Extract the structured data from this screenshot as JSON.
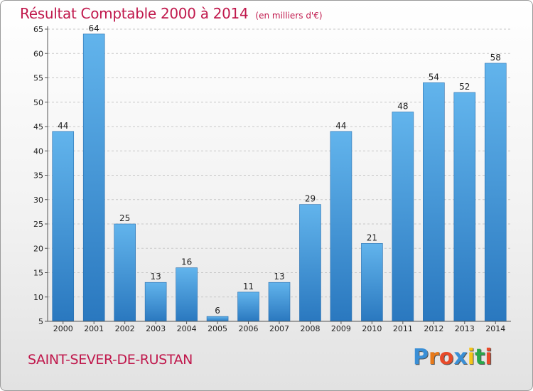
{
  "title": "Résultat Comptable 2000 à 2014",
  "subtitle": "(en milliers d'€)",
  "town": "SAINT-SEVER-DE-RUSTAN",
  "logo": {
    "letters": [
      "P",
      "r",
      "o",
      "x",
      "i",
      "t",
      "i"
    ],
    "colors": [
      "#3a8fd6",
      "#e87a1a",
      "#e84a2a",
      "#3a8fd6",
      "#f5c518",
      "#2aa84a",
      "#e84a2a"
    ]
  },
  "colors": {
    "accent": "#c0184c",
    "bar_light": "#5aaee8",
    "bar_dark": "#2a78bf",
    "grid": "#c8c8c8"
  },
  "chart_data": {
    "type": "bar",
    "title": "Résultat Comptable 2000 à 2014",
    "ylabel": "(en milliers d'€)",
    "xlabel": "",
    "categories": [
      "2000",
      "2001",
      "2002",
      "2003",
      "2004",
      "2005",
      "2006",
      "2007",
      "2008",
      "2009",
      "2010",
      "2011",
      "2012",
      "2013",
      "2014"
    ],
    "values": [
      44,
      64,
      25,
      13,
      16,
      6,
      11,
      13,
      29,
      44,
      21,
      48,
      54,
      52,
      58
    ],
    "yticks": [
      5,
      10,
      15,
      20,
      25,
      30,
      35,
      40,
      45,
      50,
      55,
      60,
      65
    ],
    "ylim": [
      5,
      65
    ],
    "grid": true
  }
}
